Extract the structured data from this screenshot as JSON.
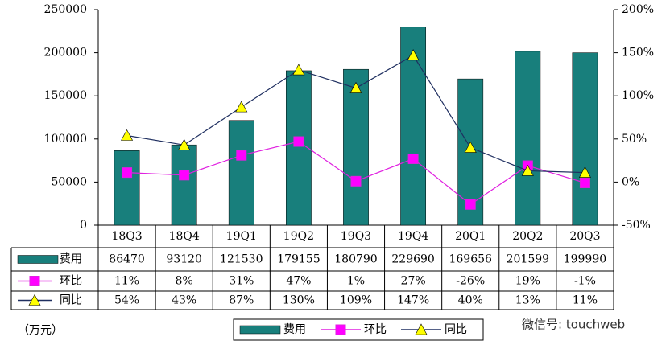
{
  "chart_data": {
    "type": "bar",
    "categories": [
      "18Q3",
      "18Q4",
      "19Q1",
      "19Q2",
      "19Q3",
      "19Q4",
      "20Q1",
      "20Q2",
      "20Q3"
    ],
    "series": [
      {
        "name": "费用",
        "color": "#187f7c",
        "values": [
          86470,
          93120,
          121530,
          179155,
          180790,
          229690,
          169656,
          201599,
          199990
        ]
      },
      {
        "name": "环比",
        "type": "line",
        "axis": "y2",
        "color": "#e020e0",
        "marker": "square",
        "marker_color": "#ff00ff",
        "values": [
          11,
          8,
          31,
          47,
          1,
          27,
          -26,
          19,
          -1
        ],
        "value_labels": [
          "11%",
          "8%",
          "31%",
          "47%",
          "1%",
          "27%",
          "-26%",
          "19%",
          "-1%"
        ]
      },
      {
        "name": "同比",
        "type": "line",
        "axis": "y2",
        "color": "#1f2f60",
        "marker": "triangle",
        "marker_color": "#ffff00",
        "values": [
          54,
          43,
          87,
          130,
          109,
          147,
          40,
          13,
          11
        ],
        "value_labels": [
          "54%",
          "43%",
          "87%",
          "130%",
          "109%",
          "147%",
          "40%",
          "13%",
          "11%"
        ]
      }
    ],
    "ylim": [
      0,
      250000
    ],
    "yticks": [
      0,
      50000,
      100000,
      150000,
      200000,
      250000
    ],
    "y2lim": [
      -50,
      200
    ],
    "y2ticks": [
      {
        "value": -50,
        "label": "-50%"
      },
      {
        "value": 0,
        "label": "0%"
      },
      {
        "value": 50,
        "label": "50%"
      },
      {
        "value": 100,
        "label": "100%"
      },
      {
        "value": 150,
        "label": "150%"
      },
      {
        "value": 200,
        "label": "200%"
      }
    ],
    "unit": "（万元）",
    "watermark": "微信号: touchweb"
  }
}
